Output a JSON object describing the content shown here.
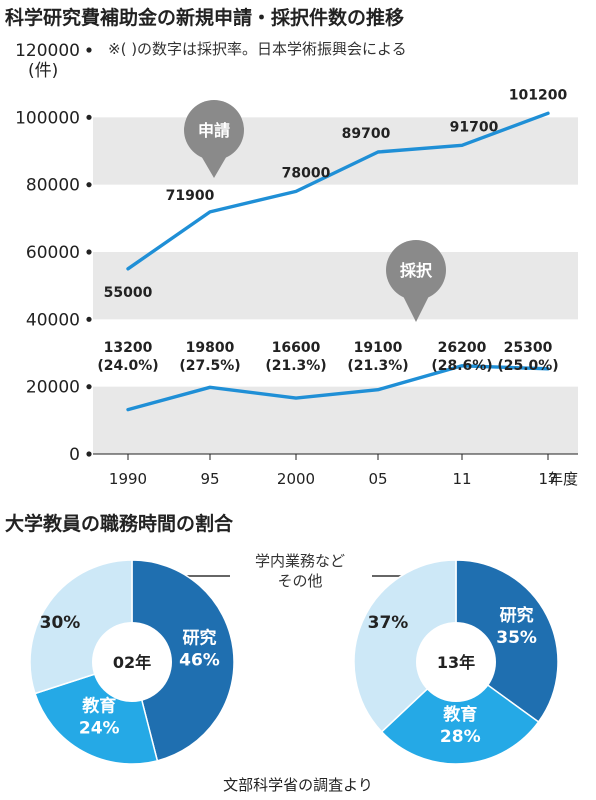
{
  "chart_data": [
    {
      "type": "line",
      "title": "科学研究費補助金の新規申請・採択件数の推移",
      "note": "※( )の数字は採択率。日本学術振興会による",
      "x": [
        "1990",
        "95",
        "2000",
        "05",
        "11",
        "17"
      ],
      "x_unit": "年度",
      "y_unit": "(件)",
      "ylim": [
        0,
        120000
      ],
      "yticks": [
        "0",
        "20000",
        "40000",
        "60000",
        "80000",
        "100000",
        "120000"
      ],
      "grid": "alternating horizontal bands",
      "series": [
        {
          "name": "申請",
          "color": "#1f8fd6",
          "values": [
            55000,
            71900,
            78000,
            89700,
            91700,
            101200
          ],
          "labels": [
            "55000",
            "71900",
            "78000",
            "89700",
            "91700",
            "101200"
          ]
        },
        {
          "name": "採択",
          "color": "#1f8fd6",
          "values": [
            13200,
            19800,
            16600,
            19100,
            26200,
            25300
          ],
          "labels": [
            "13200",
            "19800",
            "16600",
            "19100",
            "26200",
            "25300"
          ],
          "rates": [
            "(24.0%)",
            "(27.5%)",
            "(21.3%)",
            "(21.3%)",
            "(28.6%)",
            "(25.0%)"
          ]
        }
      ]
    },
    {
      "type": "pie",
      "title": "大学教員の職務時間の割合",
      "shared_label_1": "学内業務など",
      "shared_label_2": "その他",
      "source": "文部科学省の調査より",
      "pies": [
        {
          "center": "02年",
          "slices": [
            {
              "name": "研究",
              "value": 46,
              "text": "46%",
              "color": "#1f6fb0"
            },
            {
              "name": "教育",
              "value": 24,
              "text": "24%",
              "color": "#25a9e6"
            },
            {
              "name": "学内業務など その他",
              "value": 30,
              "text": "30%",
              "color": "#cde8f7"
            }
          ]
        },
        {
          "center": "13年",
          "slices": [
            {
              "name": "研究",
              "value": 35,
              "text": "35%",
              "color": "#1f6fb0"
            },
            {
              "name": "教育",
              "value": 28,
              "text": "28%",
              "color": "#25a9e6"
            },
            {
              "name": "学内業務など その他",
              "value": 37,
              "text": "37%",
              "color": "#cde8f7"
            }
          ]
        }
      ]
    }
  ]
}
